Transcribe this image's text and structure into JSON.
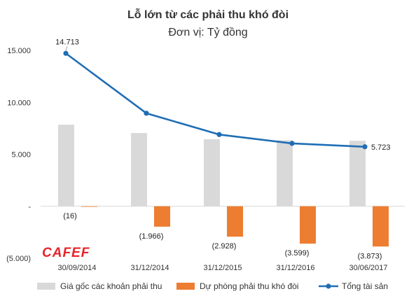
{
  "chart_data": {
    "type": "bar",
    "title": "Lỗ lớn từ các phải thu khó đòi",
    "subtitle": "Đơn vị: Tỷ đồng",
    "categories": [
      "30/09/2014",
      "31/12/2014",
      "31/12/2015",
      "31/12/2016",
      "30/06/2017"
    ],
    "series": [
      {
        "name": "Giá gốc các khoản phải thu",
        "kind": "bar",
        "color": "#d9d9d9",
        "values": [
          7850,
          7050,
          6450,
          6350,
          6300
        ],
        "labels": [
          "",
          "",
          "",
          "",
          ""
        ]
      },
      {
        "name": "Dự phòng phải thu khó đòi",
        "kind": "bar",
        "color": "#ed7d31",
        "values": [
          -16,
          -1966,
          -2928,
          -3599,
          -3873
        ],
        "labels": [
          "(16)",
          "(1.966)",
          "(2.928)",
          "(3.599)",
          "(3.873)"
        ]
      },
      {
        "name": "Tổng tài sản",
        "kind": "line",
        "color": "#1f6eb5",
        "values": [
          14713,
          8950,
          6900,
          6050,
          5723
        ],
        "labels": [
          "14.713",
          "",
          "",
          "",
          "5.723"
        ]
      }
    ],
    "ylim": [
      -5000,
      15000
    ],
    "yticks": [
      15000,
      10000,
      5000,
      0,
      -5000
    ],
    "ytick_labels": [
      "15.000",
      "10.000",
      "5.000",
      "-",
      "(5.000)"
    ],
    "grid": false,
    "legend_position": "bottom"
  },
  "watermark": "CAFEF"
}
